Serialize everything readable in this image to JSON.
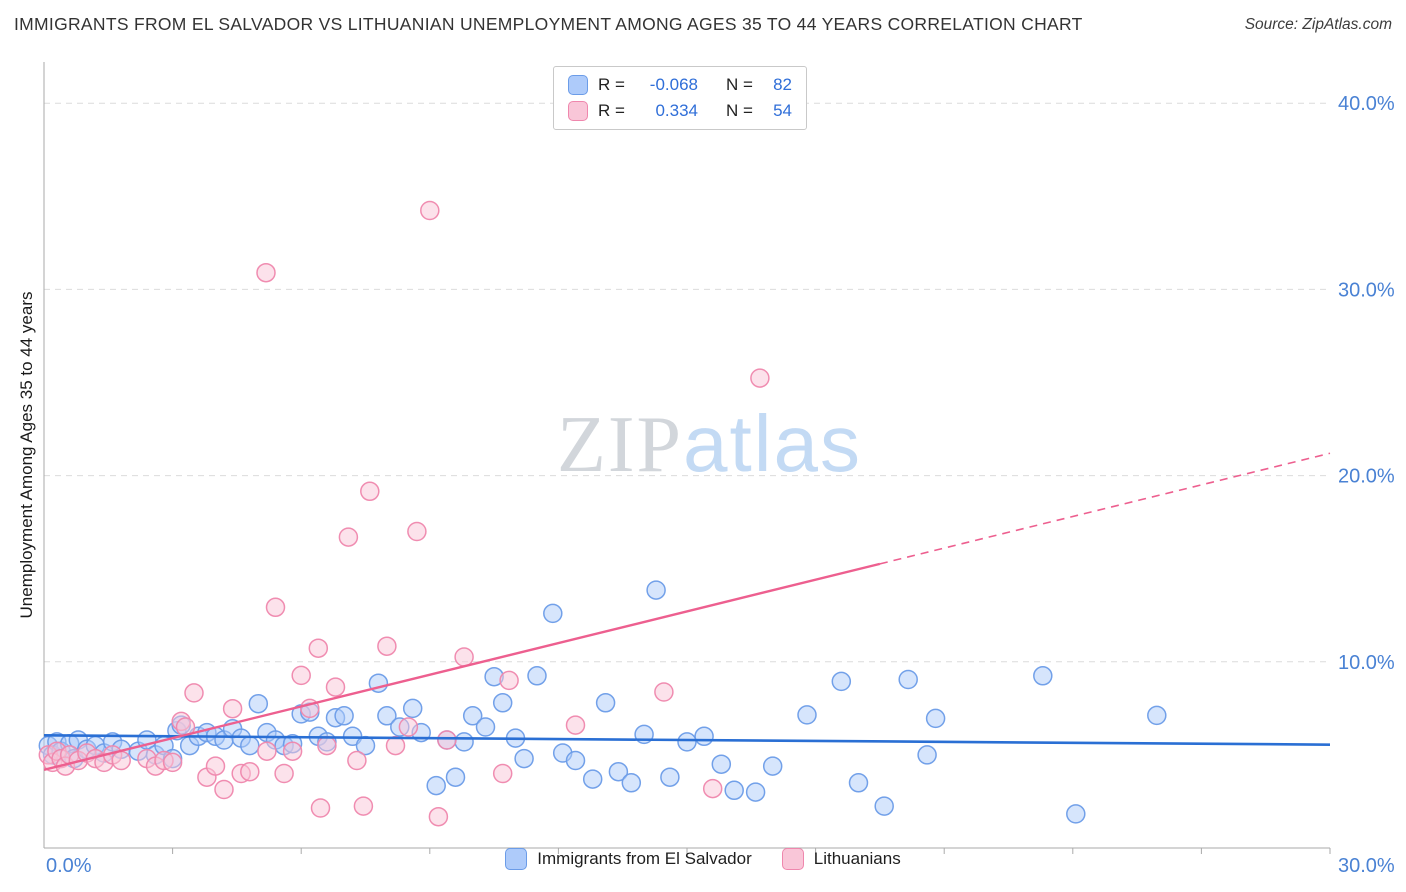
{
  "header": {
    "title": "IMMIGRANTS FROM EL SALVADOR VS LITHUANIAN UNEMPLOYMENT AMONG AGES 35 TO 44 YEARS CORRELATION CHART",
    "source": "Source: ZipAtlas.com"
  },
  "watermark": {
    "zip": "ZIP",
    "atlas": "atlas"
  },
  "correlation_box": {
    "rows": [
      {
        "series": "Immigrants from El Salvador",
        "r_label": "R =",
        "r_value": "-0.068",
        "n_label": "N =",
        "n_value": "82"
      },
      {
        "series": "Lithuanians",
        "r_label": "R =",
        "r_value": "0.334",
        "n_label": "N =",
        "n_value": "54"
      }
    ]
  },
  "colors": {
    "tick_label": "#4a82d4",
    "value_text": "#2f6ed8",
    "grid": "#dcdcdc",
    "axis": "#aaaaaa"
  },
  "chart_data": {
    "type": "scatter",
    "title": "Immigrants from El Salvador vs Lithuanian Unemployment Among Ages 35 to 44 years",
    "xlabel": "",
    "ylabel": "Unemployment Among Ages 35 to 44 years",
    "xlim": [
      0,
      0.3
    ],
    "ylim": [
      0,
      0.42
    ],
    "x_tick_interval": 0.03,
    "x_axis_min_label": "0.0%",
    "x_axis_max_label": "30.0%",
    "y_ticks": [
      {
        "value": 0.1,
        "label": "10.0%"
      },
      {
        "value": 0.2,
        "label": "20.0%"
      },
      {
        "value": 0.3,
        "label": "30.0%"
      },
      {
        "value": 0.4,
        "label": "40.0%"
      }
    ],
    "grid": "dashed-horizontal",
    "legend_position": "bottom-center",
    "series": [
      {
        "name": "Immigrants from El Salvador",
        "R": -0.068,
        "N": 82,
        "fill": "#aecbfa",
        "stroke": "#6b9ce8",
        "points": [
          [
            0.001,
            0.055
          ],
          [
            0.002,
            0.05
          ],
          [
            0.003,
            0.057
          ],
          [
            0.004,
            0.052
          ],
          [
            0.006,
            0.056
          ],
          [
            0.007,
            0.048
          ],
          [
            0.008,
            0.058
          ],
          [
            0.01,
            0.053
          ],
          [
            0.012,
            0.055
          ],
          [
            0.014,
            0.051
          ],
          [
            0.016,
            0.057
          ],
          [
            0.018,
            0.053
          ],
          [
            0.022,
            0.052
          ],
          [
            0.024,
            0.058
          ],
          [
            0.026,
            0.05
          ],
          [
            0.028,
            0.055
          ],
          [
            0.03,
            0.048
          ],
          [
            0.031,
            0.063
          ],
          [
            0.032,
            0.066
          ],
          [
            0.034,
            0.055
          ],
          [
            0.036,
            0.06
          ],
          [
            0.038,
            0.062
          ],
          [
            0.04,
            0.06
          ],
          [
            0.042,
            0.058
          ],
          [
            0.044,
            0.064
          ],
          [
            0.046,
            0.059
          ],
          [
            0.048,
            0.055
          ],
          [
            0.05,
            0.0775
          ],
          [
            0.052,
            0.062
          ],
          [
            0.054,
            0.058
          ],
          [
            0.056,
            0.055
          ],
          [
            0.058,
            0.056
          ],
          [
            0.06,
            0.072
          ],
          [
            0.062,
            0.073
          ],
          [
            0.064,
            0.06
          ],
          [
            0.066,
            0.057
          ],
          [
            0.068,
            0.07
          ],
          [
            0.07,
            0.071
          ],
          [
            0.072,
            0.06
          ],
          [
            0.075,
            0.055
          ],
          [
            0.078,
            0.0885
          ],
          [
            0.08,
            0.071
          ],
          [
            0.083,
            0.065
          ],
          [
            0.086,
            0.075
          ],
          [
            0.088,
            0.062
          ],
          [
            0.0915,
            0.0335
          ],
          [
            0.094,
            0.058
          ],
          [
            0.096,
            0.038
          ],
          [
            0.098,
            0.057
          ],
          [
            0.1,
            0.071
          ],
          [
            0.103,
            0.065
          ],
          [
            0.105,
            0.092
          ],
          [
            0.107,
            0.078
          ],
          [
            0.11,
            0.059
          ],
          [
            0.112,
            0.048
          ],
          [
            0.115,
            0.0925
          ],
          [
            0.1187,
            0.126
          ],
          [
            0.121,
            0.051
          ],
          [
            0.124,
            0.047
          ],
          [
            0.128,
            0.037
          ],
          [
            0.131,
            0.078
          ],
          [
            0.134,
            0.041
          ],
          [
            0.137,
            0.035
          ],
          [
            0.14,
            0.061
          ],
          [
            0.1428,
            0.1385
          ],
          [
            0.146,
            0.038
          ],
          [
            0.15,
            0.057
          ],
          [
            0.154,
            0.06
          ],
          [
            0.158,
            0.045
          ],
          [
            0.161,
            0.031
          ],
          [
            0.166,
            0.03
          ],
          [
            0.17,
            0.044
          ],
          [
            0.178,
            0.0715
          ],
          [
            0.186,
            0.0895
          ],
          [
            0.19,
            0.035
          ],
          [
            0.196,
            0.0225
          ],
          [
            0.2016,
            0.0905
          ],
          [
            0.206,
            0.05
          ],
          [
            0.208,
            0.0696
          ],
          [
            0.233,
            0.0925
          ],
          [
            0.2407,
            0.0183
          ],
          [
            0.2596,
            0.0712
          ]
        ]
      },
      {
        "name": "Lithuanians",
        "R": 0.334,
        "N": 54,
        "fill": "#f9c6d8",
        "stroke": "#ef87ad",
        "points": [
          [
            0.001,
            0.05
          ],
          [
            0.002,
            0.046
          ],
          [
            0.003,
            0.052
          ],
          [
            0.004,
            0.048
          ],
          [
            0.005,
            0.044
          ],
          [
            0.006,
            0.05
          ],
          [
            0.008,
            0.047
          ],
          [
            0.01,
            0.051
          ],
          [
            0.012,
            0.048
          ],
          [
            0.014,
            0.046
          ],
          [
            0.016,
            0.05
          ],
          [
            0.018,
            0.047
          ],
          [
            0.024,
            0.048
          ],
          [
            0.026,
            0.044
          ],
          [
            0.028,
            0.047
          ],
          [
            0.03,
            0.046
          ],
          [
            0.032,
            0.068
          ],
          [
            0.033,
            0.065
          ],
          [
            0.035,
            0.0833
          ],
          [
            0.038,
            0.038
          ],
          [
            0.04,
            0.044
          ],
          [
            0.042,
            0.0314
          ],
          [
            0.044,
            0.0748
          ],
          [
            0.046,
            0.04
          ],
          [
            0.048,
            0.041
          ],
          [
            0.0518,
            0.309
          ],
          [
            0.052,
            0.052
          ],
          [
            0.054,
            0.1293
          ],
          [
            0.056,
            0.04
          ],
          [
            0.058,
            0.052
          ],
          [
            0.06,
            0.0927
          ],
          [
            0.062,
            0.075
          ],
          [
            0.064,
            0.1073
          ],
          [
            0.0645,
            0.0215
          ],
          [
            0.066,
            0.055
          ],
          [
            0.068,
            0.0864
          ],
          [
            0.071,
            0.167
          ],
          [
            0.073,
            0.047
          ],
          [
            0.0745,
            0.0225
          ],
          [
            0.076,
            0.1916
          ],
          [
            0.08,
            0.1084
          ],
          [
            0.082,
            0.055
          ],
          [
            0.085,
            0.065
          ],
          [
            0.087,
            0.17
          ],
          [
            0.09,
            0.3424
          ],
          [
            0.092,
            0.0168
          ],
          [
            0.094,
            0.058
          ],
          [
            0.098,
            0.1026
          ],
          [
            0.107,
            0.04
          ],
          [
            0.1085,
            0.09
          ],
          [
            0.124,
            0.066
          ],
          [
            0.1446,
            0.0838
          ],
          [
            0.156,
            0.0319
          ],
          [
            0.167,
            0.2524
          ]
        ]
      }
    ],
    "trendlines": [
      {
        "series": "Immigrants from El Salvador",
        "color": "#2a6fd4",
        "style": "solid",
        "points": [
          [
            0,
            0.0605
          ],
          [
            0.3,
            0.0555
          ]
        ]
      },
      {
        "series": "Lithuanians",
        "color": "#ed5f8f",
        "style": "solid-then-dashed",
        "solid": [
          [
            0,
            0.042
          ],
          [
            0.195,
            0.1526
          ]
        ],
        "dashed": [
          [
            0.195,
            0.1526
          ],
          [
            0.3,
            0.212
          ]
        ]
      }
    ]
  }
}
